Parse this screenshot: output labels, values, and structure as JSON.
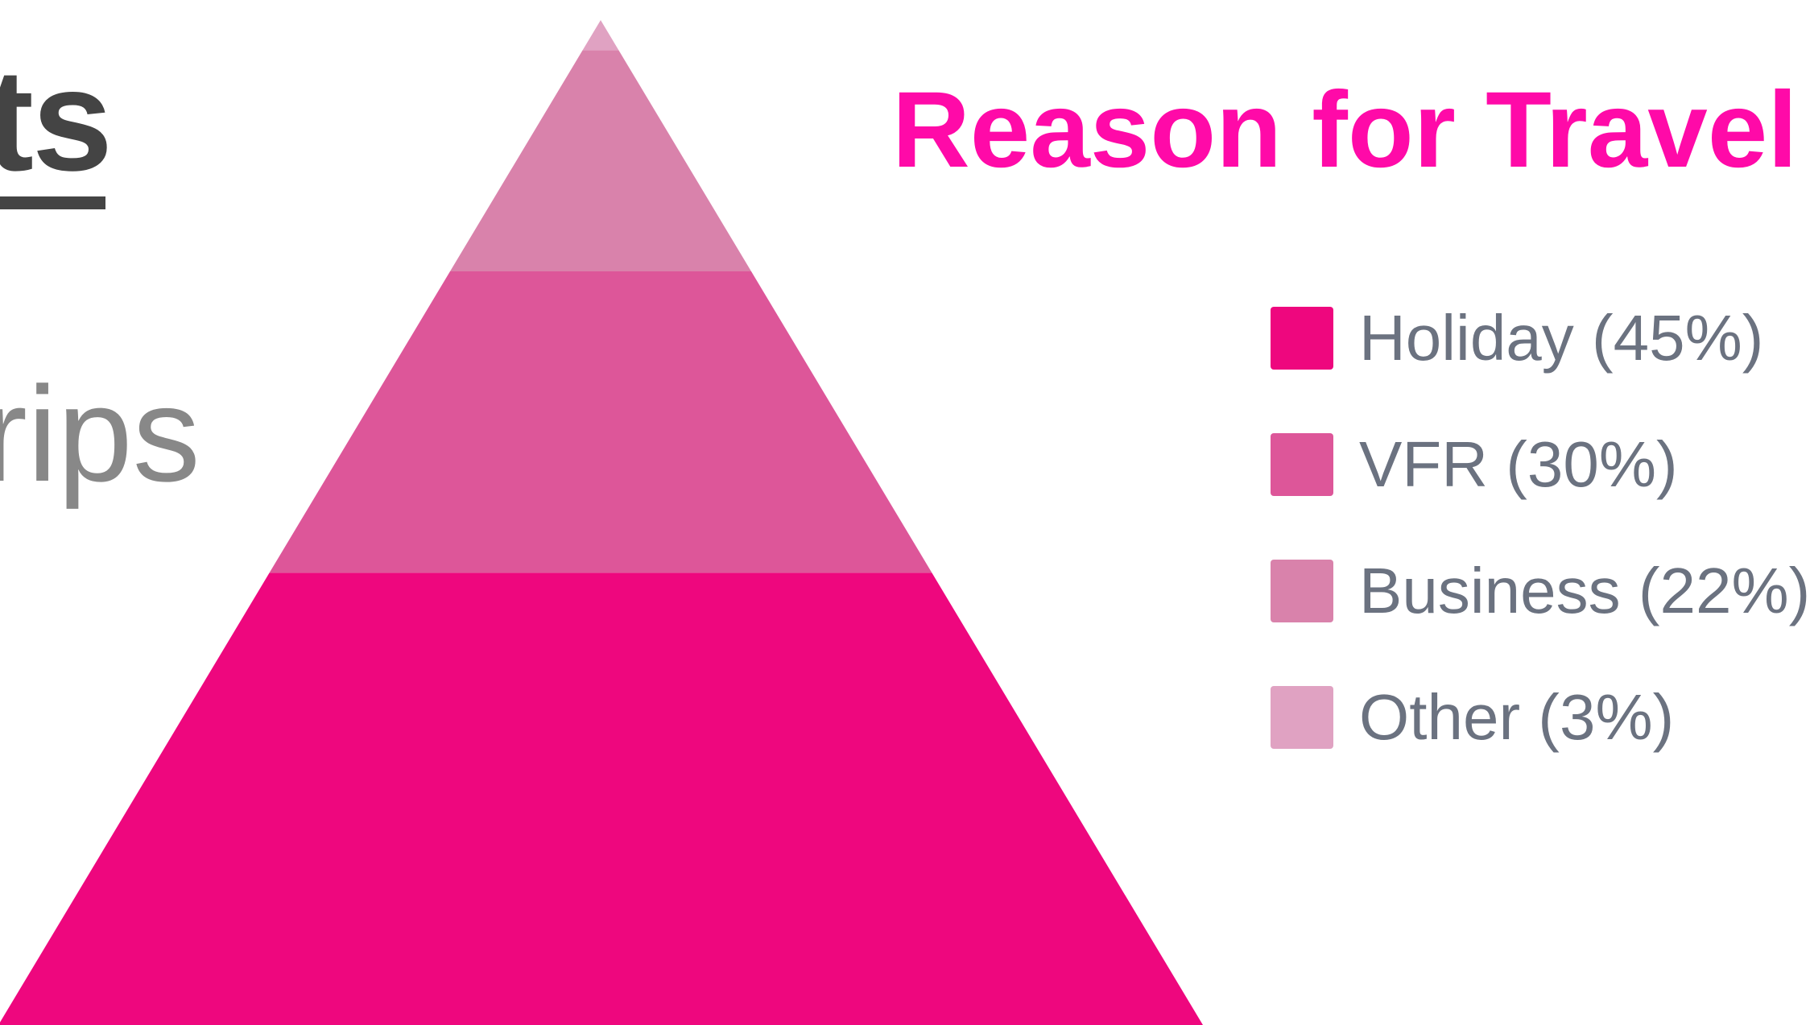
{
  "slide": {
    "heading_fragment": "ts",
    "subtitle_fragment": "rips"
  },
  "chart_data": {
    "type": "pyramid",
    "title": "Reason for Travel",
    "series": [
      {
        "name": "Holiday",
        "value": 45,
        "label": "Holiday (45%)",
        "color": "#ee077e"
      },
      {
        "name": "VFR",
        "value": 30,
        "label": "VFR (30%)",
        "color": "#dd5699"
      },
      {
        "name": "Business",
        "value": 22,
        "label": "Business (22%)",
        "color": "#d982ab"
      },
      {
        "name": "Other",
        "value": 3,
        "label": "Other (3%)",
        "color": "#e0a2c2"
      }
    ],
    "legend_position": "right"
  }
}
